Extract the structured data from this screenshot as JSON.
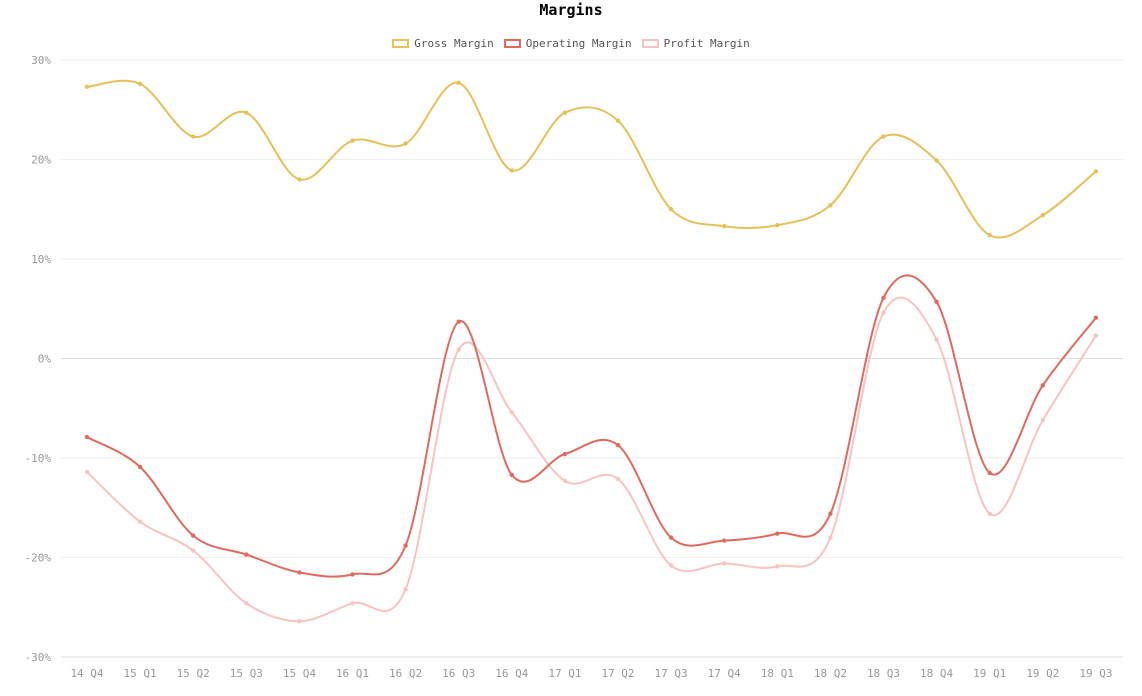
{
  "chart_data": {
    "type": "line",
    "title": "Margins",
    "categories": [
      "14 Q4",
      "15 Q1",
      "15 Q2",
      "15 Q3",
      "15 Q4",
      "16 Q1",
      "16 Q2",
      "16 Q3",
      "16 Q4",
      "17 Q1",
      "17 Q2",
      "17 Q3",
      "17 Q4",
      "18 Q1",
      "18 Q2",
      "18 Q3",
      "18 Q4",
      "19 Q1",
      "19 Q2",
      "19 Q3"
    ],
    "y_ticks": [
      "30%",
      "20%",
      "10%",
      "0%",
      "-10%",
      "-20%",
      "-30%"
    ],
    "ylim": [
      -30,
      30
    ],
    "grid": true,
    "legend_position": "top-center",
    "series": [
      {
        "name": "Gross Margin",
        "color": "#e6c15a",
        "values": [
          27.3,
          27.6,
          22.3,
          24.7,
          18.0,
          21.9,
          21.6,
          27.7,
          18.9,
          24.7,
          23.9,
          15.0,
          13.3,
          13.4,
          15.4,
          22.3,
          19.9,
          12.4,
          14.4,
          18.8
        ]
      },
      {
        "name": "Operating Margin",
        "color": "#e06a5e",
        "values": [
          -7.9,
          -10.9,
          -17.8,
          -19.7,
          -21.5,
          -21.7,
          -18.8,
          3.7,
          -11.7,
          -9.6,
          -8.7,
          -18.0,
          -18.3,
          -17.6,
          -15.6,
          6.1,
          5.7,
          -11.5,
          -2.7,
          4.1
        ]
      },
      {
        "name": "Profit Margin",
        "color": "#f7c4c2",
        "values": [
          -11.4,
          -16.4,
          -19.3,
          -24.6,
          -26.4,
          -24.6,
          -23.2,
          0.9,
          -5.4,
          -12.3,
          -12.1,
          -20.8,
          -20.6,
          -20.9,
          -18.0,
          4.6,
          1.9,
          -15.6,
          -6.2,
          2.3
        ]
      }
    ]
  }
}
